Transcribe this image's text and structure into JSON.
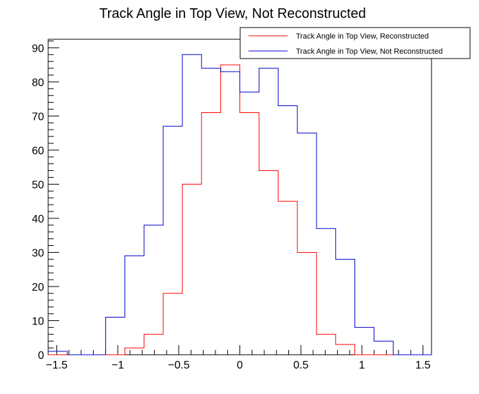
{
  "chart_data": {
    "type": "histogram",
    "title": "Track Angle in Top View, Not Reconstructed",
    "xlabel": "",
    "ylabel": "",
    "xlim": [
      -1.57,
      1.57
    ],
    "ylim": [
      0,
      92.5
    ],
    "grid": false,
    "legend_position": "top-right",
    "bin_edges": [
      -1.57,
      -1.413,
      -1.256,
      -1.099,
      -0.942,
      -0.785,
      -0.628,
      -0.471,
      -0.314,
      -0.157,
      0.0,
      0.157,
      0.314,
      0.471,
      0.628,
      0.785,
      0.942,
      1.099,
      1.256,
      1.413,
      1.57
    ],
    "x_ticks": [
      -1.5,
      -1,
      -0.5,
      0,
      0.5,
      1,
      1.5
    ],
    "x_tick_labels": [
      "−1.5",
      "−1",
      "−0.5",
      "0",
      "0.5",
      "1",
      "1.5"
    ],
    "y_ticks": [
      0,
      10,
      20,
      30,
      40,
      50,
      60,
      70,
      80,
      90
    ],
    "y_tick_labels": [
      "0",
      "10",
      "20",
      "30",
      "40",
      "50",
      "60",
      "70",
      "80",
      "90"
    ],
    "series": [
      {
        "name": "Track Angle in Top View, Reconstructed",
        "color": "#ff0000",
        "values": [
          0,
          0,
          0,
          0,
          2,
          6,
          18,
          50,
          71,
          85,
          71,
          54,
          45,
          30,
          6,
          3,
          0,
          0,
          0,
          0
        ]
      },
      {
        "name": "Track Angle in Top View, Not Reconstructed",
        "color": "#0000cc",
        "values": [
          1,
          0,
          0,
          11,
          29,
          38,
          67,
          88,
          84,
          83,
          77,
          84,
          73,
          65,
          37,
          28,
          8,
          4,
          0,
          0
        ]
      }
    ]
  }
}
